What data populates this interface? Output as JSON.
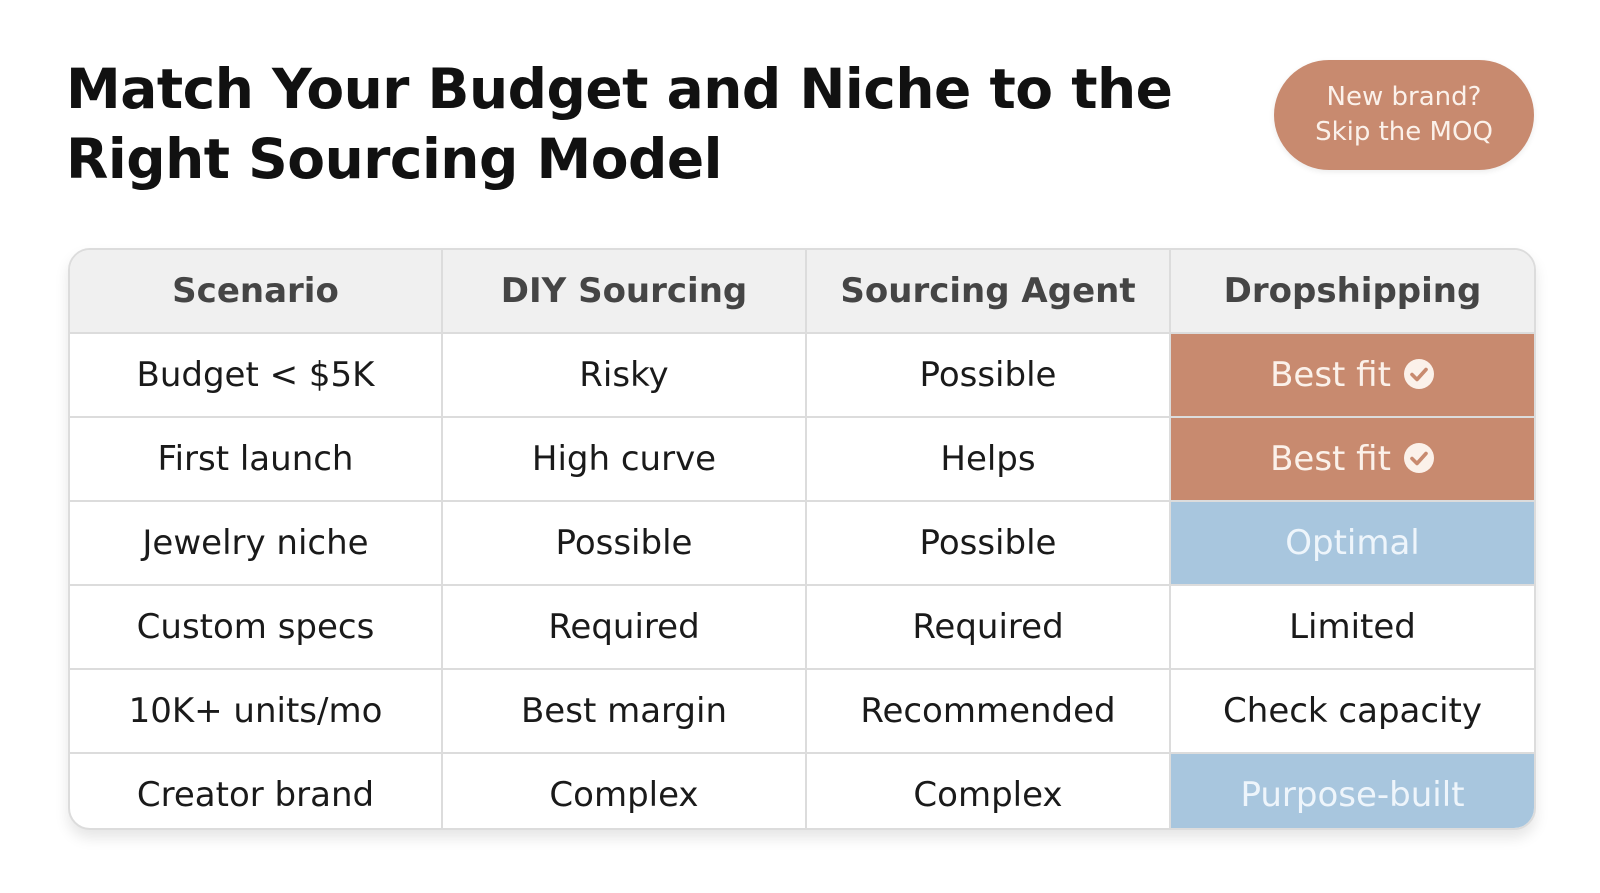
{
  "title": "Match Your Budget and Niche to the Right Sourcing Model",
  "badge": {
    "text": "New brand?\nSkip the MOQ",
    "color": "#c88a6f"
  },
  "colors": {
    "best_fit": "#c88a6f",
    "optimal": "#a8c6de",
    "header_bg": "#f0f0f0"
  },
  "table": {
    "headers": [
      "Scenario",
      "DIY Sourcing",
      "Sourcing Agent",
      "Dropshipping"
    ],
    "rows": [
      {
        "scenario": "Budget < $5K",
        "diy": "Risky",
        "agent": "Possible",
        "dropship": "Best fit",
        "dropship_style": "best-fit",
        "check_icon": "check-circle-icon"
      },
      {
        "scenario": "First launch",
        "diy": "High curve",
        "agent": "Helps",
        "dropship": "Best fit",
        "dropship_style": "best-fit",
        "check_icon": "check-circle-icon"
      },
      {
        "scenario": "Jewelry niche",
        "diy": "Possible",
        "agent": "Possible",
        "dropship": "Optimal",
        "dropship_style": "optimal"
      },
      {
        "scenario": "Custom specs",
        "diy": "Required",
        "agent": "Required",
        "dropship": "Limited",
        "dropship_style": "plain"
      },
      {
        "scenario": "10K+ units/mo",
        "diy": "Best margin",
        "agent": "Recommended",
        "dropship": "Check capacity",
        "dropship_style": "plain"
      },
      {
        "scenario": "Creator brand",
        "diy": "Complex",
        "agent": "Complex",
        "dropship": "Purpose-built",
        "dropship_style": "optimal"
      }
    ]
  }
}
